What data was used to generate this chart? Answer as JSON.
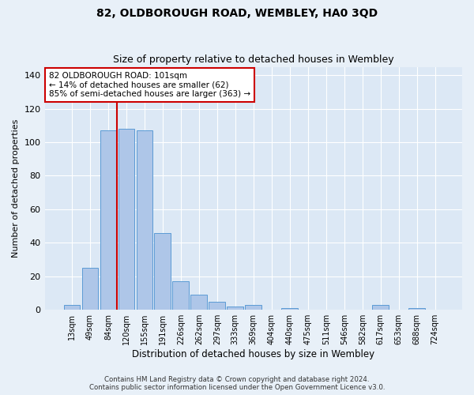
{
  "title": "82, OLDBOROUGH ROAD, WEMBLEY, HA0 3QD",
  "subtitle": "Size of property relative to detached houses in Wembley",
  "xlabel": "Distribution of detached houses by size in Wembley",
  "ylabel": "Number of detached properties",
  "bar_labels": [
    "13sqm",
    "49sqm",
    "84sqm",
    "120sqm",
    "155sqm",
    "191sqm",
    "226sqm",
    "262sqm",
    "297sqm",
    "333sqm",
    "369sqm",
    "404sqm",
    "440sqm",
    "475sqm",
    "511sqm",
    "546sqm",
    "582sqm",
    "617sqm",
    "653sqm",
    "688sqm",
    "724sqm"
  ],
  "bar_heights": [
    3,
    25,
    107,
    108,
    107,
    46,
    17,
    9,
    5,
    2,
    3,
    0,
    1,
    0,
    0,
    0,
    0,
    3,
    0,
    1,
    0
  ],
  "bar_color": "#aec6e8",
  "bar_edge_color": "#5b9bd5",
  "vline_x": 2.5,
  "vline_color": "#cc0000",
  "annotation_text": "82 OLDBOROUGH ROAD: 101sqm\n← 14% of detached houses are smaller (62)\n85% of semi-detached houses are larger (363) →",
  "annotation_box_color": "#ffffff",
  "annotation_box_edge": "#cc0000",
  "ylim": [
    0,
    145
  ],
  "yticks": [
    0,
    20,
    40,
    60,
    80,
    100,
    120,
    140
  ],
  "background_color": "#e8f0f8",
  "plot_background_color": "#dce8f5",
  "footer_line1": "Contains HM Land Registry data © Crown copyright and database right 2024.",
  "footer_line2": "Contains public sector information licensed under the Open Government Licence v3.0."
}
